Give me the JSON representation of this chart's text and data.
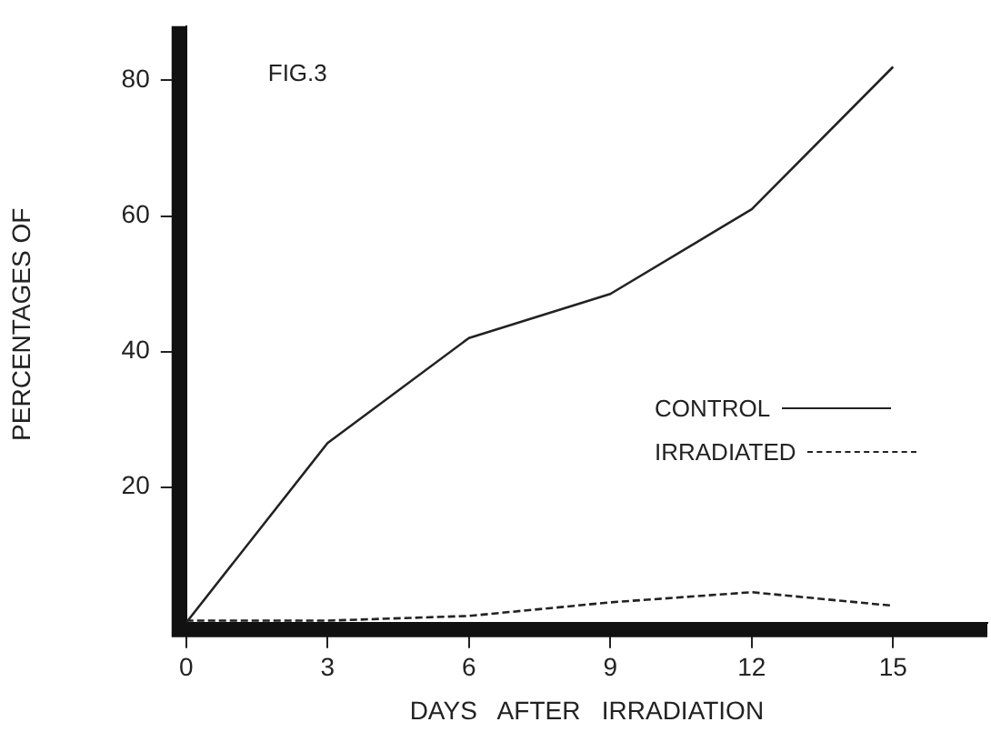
{
  "chart_data": {
    "type": "line",
    "xlabel": "DAYS   AFTER   IRRADIATION",
    "ylabel": "PERCENTAGES OF",
    "annotations": [
      "FIG.3"
    ],
    "x": [
      0,
      3,
      6,
      9,
      12,
      15
    ],
    "xlim": [
      0,
      17
    ],
    "xticks": [
      0,
      3,
      6,
      9,
      12,
      15
    ],
    "ylim": [
      0,
      88
    ],
    "yticks": [
      20,
      40,
      60,
      80
    ],
    "series": [
      {
        "name": "CONTROL",
        "color": "#222222",
        "values": [
          0,
          26.5,
          42,
          48.5,
          61,
          82
        ],
        "line_style": "solid"
      },
      {
        "name": "IRRADIATED",
        "color": "#222222",
        "values": [
          0.3,
          0.3,
          1,
          3,
          4.5,
          2.5
        ],
        "line_style": "dashed"
      }
    ],
    "legend": "right",
    "grid": false,
    "marker": "none"
  }
}
